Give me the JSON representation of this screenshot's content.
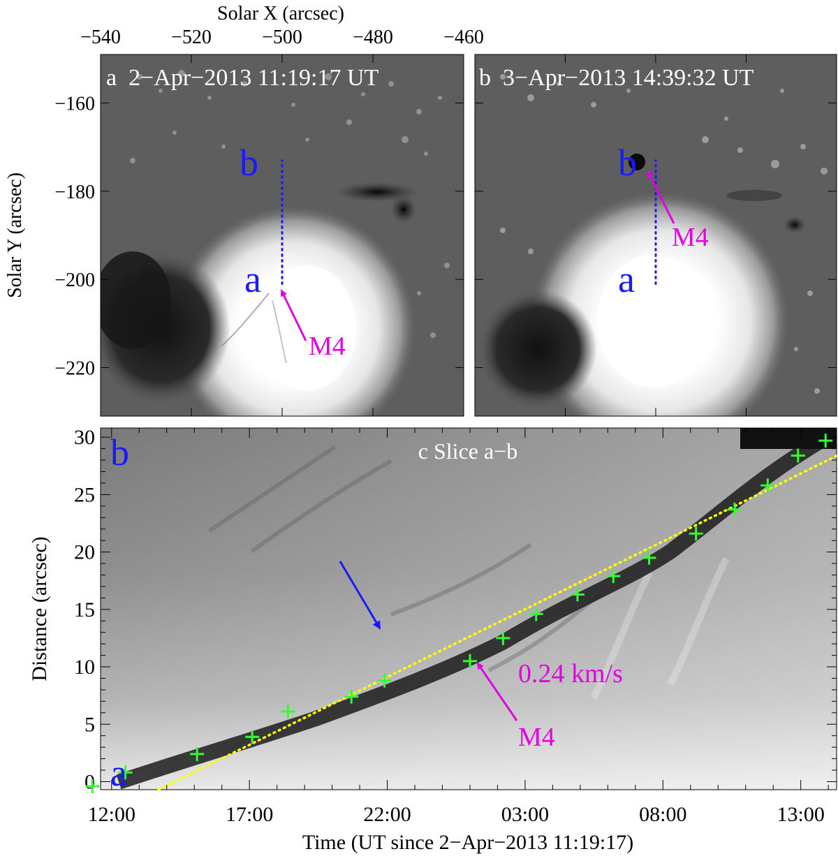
{
  "panel_a": {
    "label": "a  2−Apr−2013 11:19:17 UT",
    "top_axis_label": "Solar X (arcsec)",
    "y_axis_label": "Solar Y (arcsec)",
    "point_a": "a",
    "point_b": "b",
    "feature_label": "M4"
  },
  "panel_b": {
    "label": "b  3−Apr−2013 14:39:32 UT",
    "point_a": "a",
    "point_b": "b",
    "feature_label": "M4"
  },
  "panel_c": {
    "label": "c Slice a−b",
    "point_a": "a",
    "point_b": "b",
    "feature_label": "M4",
    "speed_label": "0.24 km/s",
    "x_axis_label": "Time (UT since 2−Apr−2013 11:19:17)",
    "y_axis_label": "Distance (arcsec)"
  },
  "colors": {
    "point_labels": "#1a1aff",
    "feature": "#e000e0",
    "markers": "#33ff33",
    "fit_line": "#ffff00",
    "slice_line": "#1a1aff"
  },
  "chart_data": [
    {
      "type": "heatmap",
      "title": "a  2−Apr−2013 11:19:17 UT",
      "xlabel": "Solar X (arcsec)",
      "ylabel": "Solar Y (arcsec)",
      "x_ticks": [
        -540,
        -520,
        -500,
        -480,
        -460
      ],
      "y_ticks": [
        -160,
        -180,
        -200,
        -220
      ],
      "xlim": [
        -540,
        -460
      ],
      "ylim": [
        -231,
        -149
      ],
      "slice": {
        "from": "a",
        "to": "b",
        "x": -500,
        "y_start": -201,
        "y_end": -173
      }
    },
    {
      "type": "heatmap",
      "title": "b  3−Apr−2013 14:39:32 UT",
      "xlim": [
        -540,
        -460
      ],
      "ylim": [
        -231,
        -149
      ],
      "slice": {
        "from": "a",
        "to": "b",
        "x": -500,
        "y_start": -201,
        "y_end": -173
      }
    },
    {
      "type": "scatter",
      "title": "c Slice a−b",
      "xlabel": "Time (UT since 2−Apr−2013 11:19:17)",
      "ylabel": "Distance (arcsec)",
      "x_tick_labels": [
        "12:00",
        "17:00",
        "22:00",
        "03:00",
        "08:00",
        "13:00"
      ],
      "y_ticks": [
        0,
        5,
        10,
        15,
        20,
        25,
        30
      ],
      "ylim": [
        -0.7,
        30.8
      ],
      "x_hours_range": [
        11.6,
        38.3
      ],
      "series": [
        {
          "name": "M4",
          "x_hours": [
            11.3,
            12.5,
            15.1,
            17.1,
            18.4,
            20.7,
            21.9,
            25.0,
            26.2,
            27.4,
            28.9,
            30.2,
            31.5,
            33.2,
            34.6,
            35.8,
            36.9
          ],
          "y": [
            -0.4,
            0.8,
            2.4,
            3.9,
            6.1,
            7.4,
            8.8,
            10.5,
            12.5,
            14.6,
            16.3,
            17.9,
            19.5,
            21.6,
            23.7,
            25.8,
            28.4
          ],
          "x_extra": [
            37.9
          ],
          "y_extra": [
            29.7
          ]
        }
      ],
      "fit": {
        "name": "0.24 km/s",
        "x_hours": [
          13.7,
          39.0
        ],
        "y": [
          -0.7,
          29.2
        ]
      }
    }
  ]
}
